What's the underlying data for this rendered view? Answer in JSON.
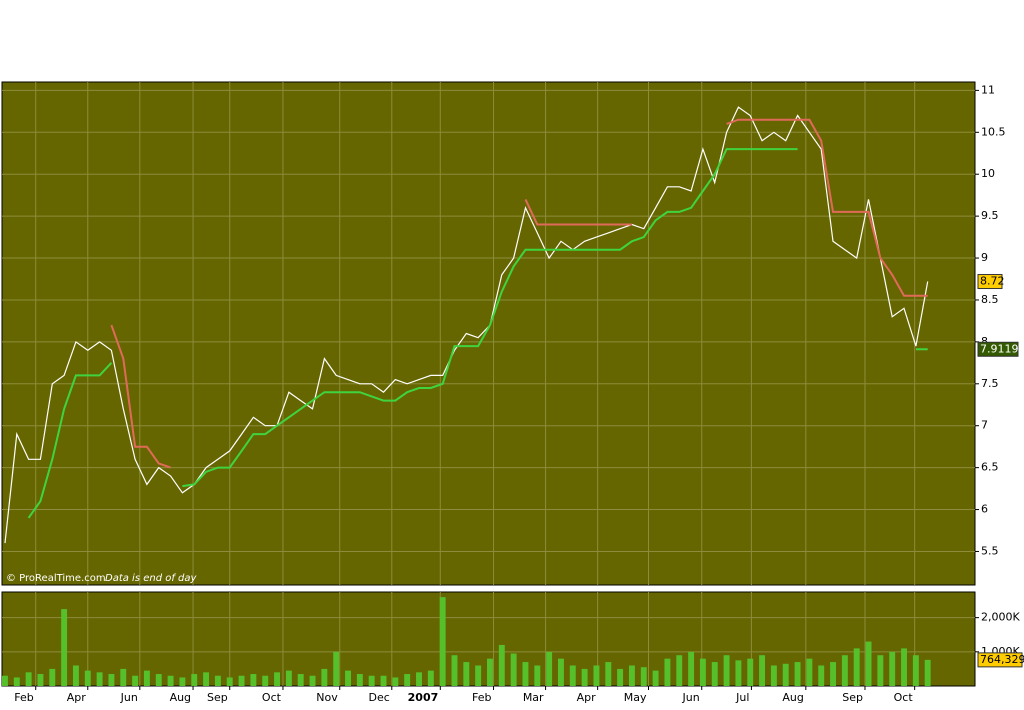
{
  "chart_data": {
    "type": "stock",
    "x": [
      0,
      1,
      2,
      3,
      4,
      5,
      6,
      7,
      8,
      9,
      10,
      11,
      12,
      13,
      14,
      15,
      16,
      17,
      18,
      19,
      20,
      21,
      22,
      23,
      24,
      25,
      26,
      27,
      28,
      29,
      30,
      31,
      32,
      33,
      34,
      35,
      36,
      37,
      38,
      39,
      40,
      41,
      42,
      43,
      44,
      45,
      46,
      47,
      48,
      49,
      50,
      51,
      52,
      53,
      54,
      55,
      56,
      57,
      58,
      59,
      60,
      61,
      62,
      63,
      64,
      65,
      66,
      67,
      68,
      69,
      70,
      71,
      72,
      73,
      74,
      75,
      76,
      77,
      78
    ],
    "xlim": [
      -0.25,
      82
    ],
    "xticks": [
      {
        "value": 2.6,
        "label": "Feb"
      },
      {
        "value": 7.0,
        "label": "Apr"
      },
      {
        "value": 11.4,
        "label": "Jun"
      },
      {
        "value": 15.9,
        "label": "Aug"
      },
      {
        "value": 19.0,
        "label": "Sep"
      },
      {
        "value": 23.5,
        "label": "Oct"
      },
      {
        "value": 28.3,
        "label": "Nov"
      },
      {
        "value": 32.7,
        "label": "Dec"
      },
      {
        "value": 36.8,
        "label": "2007"
      },
      {
        "value": 41.3,
        "label": "Feb"
      },
      {
        "value": 45.7,
        "label": "Mar"
      },
      {
        "value": 50.1,
        "label": "Apr"
      },
      {
        "value": 54.4,
        "label": "May"
      },
      {
        "value": 58.9,
        "label": "Jun"
      },
      {
        "value": 63.1,
        "label": "Jul"
      },
      {
        "value": 67.7,
        "label": "Aug"
      },
      {
        "value": 72.7,
        "label": "Sep"
      },
      {
        "value": 76.9,
        "label": "Oct"
      }
    ],
    "ylim": [
      5.1,
      11.1
    ],
    "yticks": [
      5.5,
      6,
      6.5,
      7,
      7.5,
      8,
      8.5,
      9,
      9.5,
      10,
      10.5,
      11
    ],
    "grid": true,
    "series": [
      {
        "color": "#ffffff",
        "values": [
          5.6,
          6.9,
          6.6,
          6.6,
          7.5,
          7.6,
          8.0,
          7.9,
          8.0,
          7.9,
          7.2,
          6.6,
          6.3,
          6.5,
          6.4,
          6.2,
          6.3,
          6.5,
          6.6,
          6.7,
          6.9,
          7.1,
          7.0,
          7.0,
          7.4,
          7.3,
          7.2,
          7.8,
          7.6,
          7.55,
          7.5,
          7.5,
          7.4,
          7.55,
          7.5,
          7.55,
          7.6,
          7.6,
          7.9,
          8.1,
          8.05,
          8.2,
          8.8,
          9.0,
          9.6,
          9.3,
          9.0,
          9.2,
          9.1,
          9.2,
          9.25,
          9.3,
          9.35,
          9.4,
          9.35,
          9.6,
          9.85,
          9.85,
          9.8,
          10.3,
          9.9,
          10.5,
          10.8,
          10.7,
          10.4,
          10.5,
          10.4,
          10.7,
          10.5,
          10.3,
          9.2,
          9.1,
          9.0,
          9.7,
          9.0,
          8.3,
          8.4,
          7.95,
          8.72
        ]
      },
      {
        "color": "#e06a5a",
        "values": [
          null,
          null,
          null,
          null,
          null,
          null,
          null,
          null,
          null,
          8.2,
          7.8,
          6.75,
          6.75,
          6.55,
          6.5,
          null,
          null,
          null,
          null,
          null,
          null,
          null,
          null,
          null,
          null,
          null,
          null,
          null,
          null,
          null,
          null,
          null,
          null,
          null,
          null,
          null,
          null,
          null,
          null,
          null,
          null,
          null,
          null,
          null,
          9.7,
          9.4,
          9.4,
          9.4,
          9.4,
          9.4,
          9.4,
          9.4,
          9.4,
          9.4,
          null,
          null,
          null,
          null,
          null,
          null,
          null,
          10.6,
          10.65,
          10.65,
          10.65,
          10.65,
          10.65,
          10.65,
          10.65,
          10.4,
          9.55,
          9.55,
          9.55,
          9.55,
          9.0,
          8.8,
          8.55,
          8.55,
          8.55
        ]
      },
      {
        "color": "#3fd43f",
        "values": [
          null,
          null,
          5.9,
          6.1,
          6.6,
          7.2,
          7.6,
          7.6,
          7.6,
          7.75,
          null,
          null,
          null,
          null,
          null,
          6.28,
          6.3,
          6.45,
          6.5,
          6.5,
          6.7,
          6.9,
          6.9,
          7.0,
          7.1,
          7.2,
          7.3,
          7.4,
          7.4,
          7.4,
          7.4,
          7.35,
          7.3,
          7.3,
          7.4,
          7.45,
          7.45,
          7.5,
          7.95,
          7.95,
          7.95,
          8.2,
          8.6,
          8.9,
          9.1,
          9.1,
          9.1,
          9.1,
          9.1,
          9.1,
          9.1,
          9.1,
          9.1,
          9.2,
          9.25,
          9.45,
          9.55,
          9.55,
          9.6,
          9.8,
          10.0,
          10.3,
          10.3,
          10.3,
          10.3,
          10.3,
          10.3,
          10.3,
          null,
          null,
          null,
          null,
          null,
          null,
          null,
          null,
          null,
          7.9119,
          7.9119
        ]
      }
    ],
    "last_price": 8.72,
    "stop_level": 7.9119,
    "volume": {
      "color": "#55c02a",
      "values": [
        300,
        250,
        400,
        350,
        500,
        2250,
        600,
        450,
        400,
        350,
        500,
        300,
        450,
        350,
        300,
        250,
        350,
        400,
        300,
        250,
        300,
        350,
        300,
        400,
        450,
        350,
        300,
        500,
        1000,
        450,
        350,
        300,
        300,
        250,
        350,
        400,
        450,
        2600,
        900,
        700,
        600,
        800,
        1200,
        950,
        700,
        600,
        1000,
        800,
        600,
        500,
        600,
        700,
        500,
        600,
        550,
        450,
        800,
        900,
        1000,
        800,
        700,
        900,
        750,
        800,
        900,
        600,
        650,
        700,
        800,
        600,
        700,
        900,
        1100,
        1300,
        900,
        1000,
        1100,
        900,
        764.329
      ],
      "ylim": [
        0,
        2750
      ],
      "yticks": [
        {
          "value": 1000,
          "label": "1,000K"
        },
        {
          "value": 2000,
          "label": "2,000K"
        }
      ],
      "last": {
        "value": 764.329,
        "label": "764,329"
      }
    },
    "watermark": "© ProRealTime.com",
    "note": "Data is end of day"
  }
}
